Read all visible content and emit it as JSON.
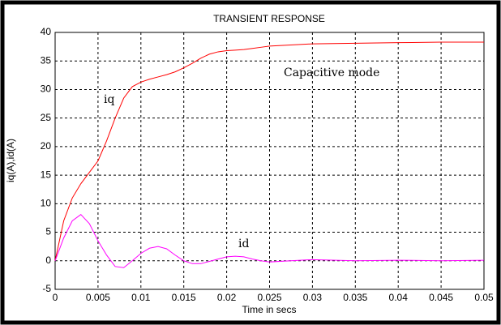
{
  "chart_data": {
    "type": "line",
    "title": "TRANSIENT RESPONSE",
    "x_label": "Time in secs",
    "y_label": "iq(A),id(A)",
    "annotations": [
      "Capacitive mode",
      "iq",
      "id"
    ],
    "x": [
      0,
      0.001,
      0.002,
      0.003,
      0.004,
      0.005,
      0.006,
      0.007,
      0.008,
      0.009,
      0.01,
      0.011,
      0.012,
      0.013,
      0.014,
      0.015,
      0.016,
      0.017,
      0.018,
      0.019,
      0.02,
      0.021,
      0.022,
      0.023,
      0.024,
      0.025,
      0.03,
      0.035,
      0.04,
      0.045,
      0.05
    ],
    "series": [
      {
        "name": "iq",
        "color": "#ff0000",
        "values": [
          0,
          7,
          11,
          13.5,
          15.5,
          17.5,
          21,
          25,
          28.5,
          30.5,
          31.3,
          31.8,
          32.2,
          32.6,
          33.1,
          33.8,
          34.6,
          35.5,
          36.2,
          36.6,
          36.8,
          36.9,
          37,
          37.2,
          37.4,
          37.6,
          38,
          38.1,
          38.2,
          38.3,
          38.3
        ]
      },
      {
        "name": "id",
        "color": "#ff00ff",
        "values": [
          0,
          4,
          7,
          8.1,
          6.5,
          3.5,
          1,
          -1,
          -1.2,
          0,
          1.3,
          2.2,
          2.5,
          2.1,
          1,
          0,
          -0.5,
          -0.5,
          -0.1,
          0.3,
          0.7,
          0.8,
          0.7,
          0.3,
          0,
          -0.2,
          0.2,
          0,
          0.1,
          0,
          0.1
        ]
      }
    ],
    "xlim": [
      0,
      0.05
    ],
    "xticks": [
      0,
      0.005,
      0.01,
      0.015,
      0.02,
      0.025,
      0.03,
      0.035,
      0.04,
      0.045,
      0.05
    ],
    "ylim": [
      -5,
      40
    ],
    "yticks": [
      -5,
      0,
      5,
      10,
      15,
      20,
      25,
      30,
      35,
      40
    ],
    "grid": true
  }
}
